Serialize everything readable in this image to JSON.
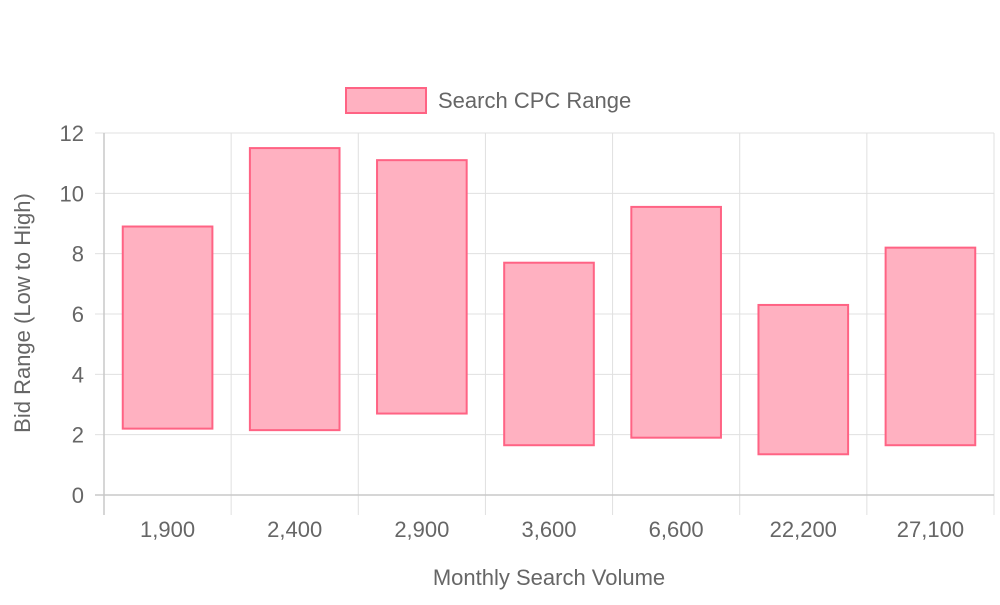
{
  "chart_data": {
    "type": "bar",
    "subtype": "floating-range",
    "categories": [
      "1,900",
      "2,400",
      "2,900",
      "3,600",
      "6,600",
      "22,200",
      "27,100"
    ],
    "series": [
      {
        "name": "Search CPC Range",
        "low": [
          2.2,
          2.15,
          2.7,
          1.65,
          1.9,
          1.35,
          1.65
        ],
        "high": [
          8.9,
          11.5,
          11.1,
          7.7,
          9.55,
          6.3,
          8.2
        ],
        "fill_color": "#ffb1c1",
        "border_color": "#ff6384"
      }
    ],
    "xlabel": "Monthly Search Volume",
    "ylabel": "Bid Range (Low to High)",
    "ylim": [
      0,
      12
    ],
    "yticks": [
      0,
      2,
      4,
      6,
      8,
      10,
      12
    ],
    "grid": true,
    "legend_position": "top-center"
  }
}
